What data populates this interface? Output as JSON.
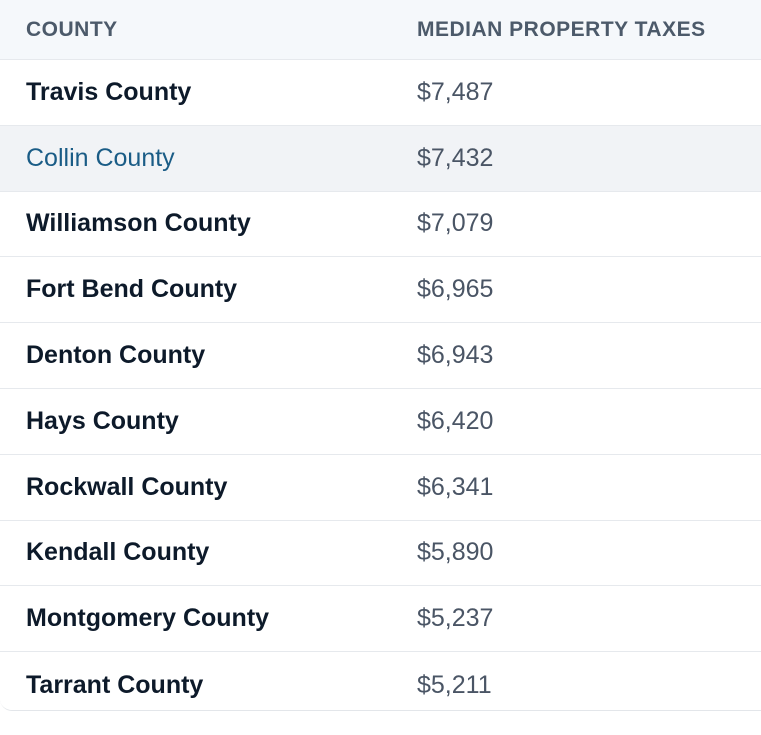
{
  "table": {
    "headers": {
      "county": "COUNTY",
      "tax": "MEDIAN PROPERTY TAXES"
    },
    "rows": [
      {
        "county": "Travis County",
        "tax": "$7,487"
      },
      {
        "county": "Collin County",
        "tax": "$7,432"
      },
      {
        "county": "Williamson County",
        "tax": "$7,079"
      },
      {
        "county": "Fort Bend County",
        "tax": "$6,965"
      },
      {
        "county": "Denton County",
        "tax": "$6,943"
      },
      {
        "county": "Hays County",
        "tax": "$6,420"
      },
      {
        "county": "Rockwall County",
        "tax": "$6,341"
      },
      {
        "county": "Kendall County",
        "tax": "$5,890"
      },
      {
        "county": "Montgomery County",
        "tax": "$5,237"
      },
      {
        "county": "Tarrant County",
        "tax": "$5,211"
      }
    ],
    "highlighted_row": "Collin County",
    "colors": {
      "header_bg": "#f5f8fb",
      "header_text": "#4c5a6a",
      "link": "#1a5c86",
      "hover_bg": "#f1f3f6"
    }
  }
}
